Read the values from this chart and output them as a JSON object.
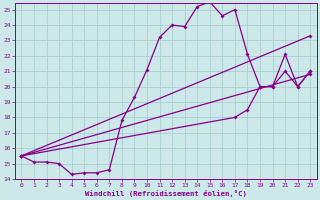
{
  "bg_color": "#cce8e8",
  "grid_color": "#aacece",
  "line_color": "#880088",
  "xlim": [
    -0.5,
    23.5
  ],
  "ylim": [
    14,
    25.4
  ],
  "xticks": [
    0,
    1,
    2,
    3,
    4,
    5,
    6,
    7,
    8,
    9,
    10,
    11,
    12,
    13,
    14,
    15,
    16,
    17,
    18,
    19,
    20,
    21,
    22,
    23
  ],
  "yticks": [
    14,
    15,
    16,
    17,
    18,
    19,
    20,
    21,
    22,
    23,
    24,
    25
  ],
  "xlabel": "Windchill (Refroidissement éolien,°C)",
  "line1_x": [
    0,
    1,
    2,
    3,
    4,
    5,
    6,
    7,
    8,
    9,
    10,
    11,
    12,
    13,
    14,
    15,
    16,
    17,
    18,
    19,
    20,
    21,
    22,
    23
  ],
  "line1_y": [
    15.5,
    15.1,
    15.1,
    15.0,
    14.3,
    14.4,
    14.4,
    14.6,
    17.8,
    19.3,
    21.1,
    23.2,
    24.0,
    23.9,
    25.2,
    25.5,
    24.6,
    25.0,
    22.1,
    20.0,
    20.0,
    22.1,
    20.0,
    21.0
  ],
  "line2_x": [
    0,
    17,
    18,
    19,
    20,
    21,
    22,
    23
  ],
  "line2_y": [
    15.5,
    18.0,
    18.5,
    20.0,
    20.0,
    21.0,
    20.0,
    21.0
  ],
  "line3_x": [
    0,
    23
  ],
  "line3_y": [
    15.5,
    20.8
  ],
  "line4_x": [
    0,
    23
  ],
  "line4_y": [
    15.5,
    23.3
  ],
  "markersize": 2.0,
  "linewidth": 0.9
}
